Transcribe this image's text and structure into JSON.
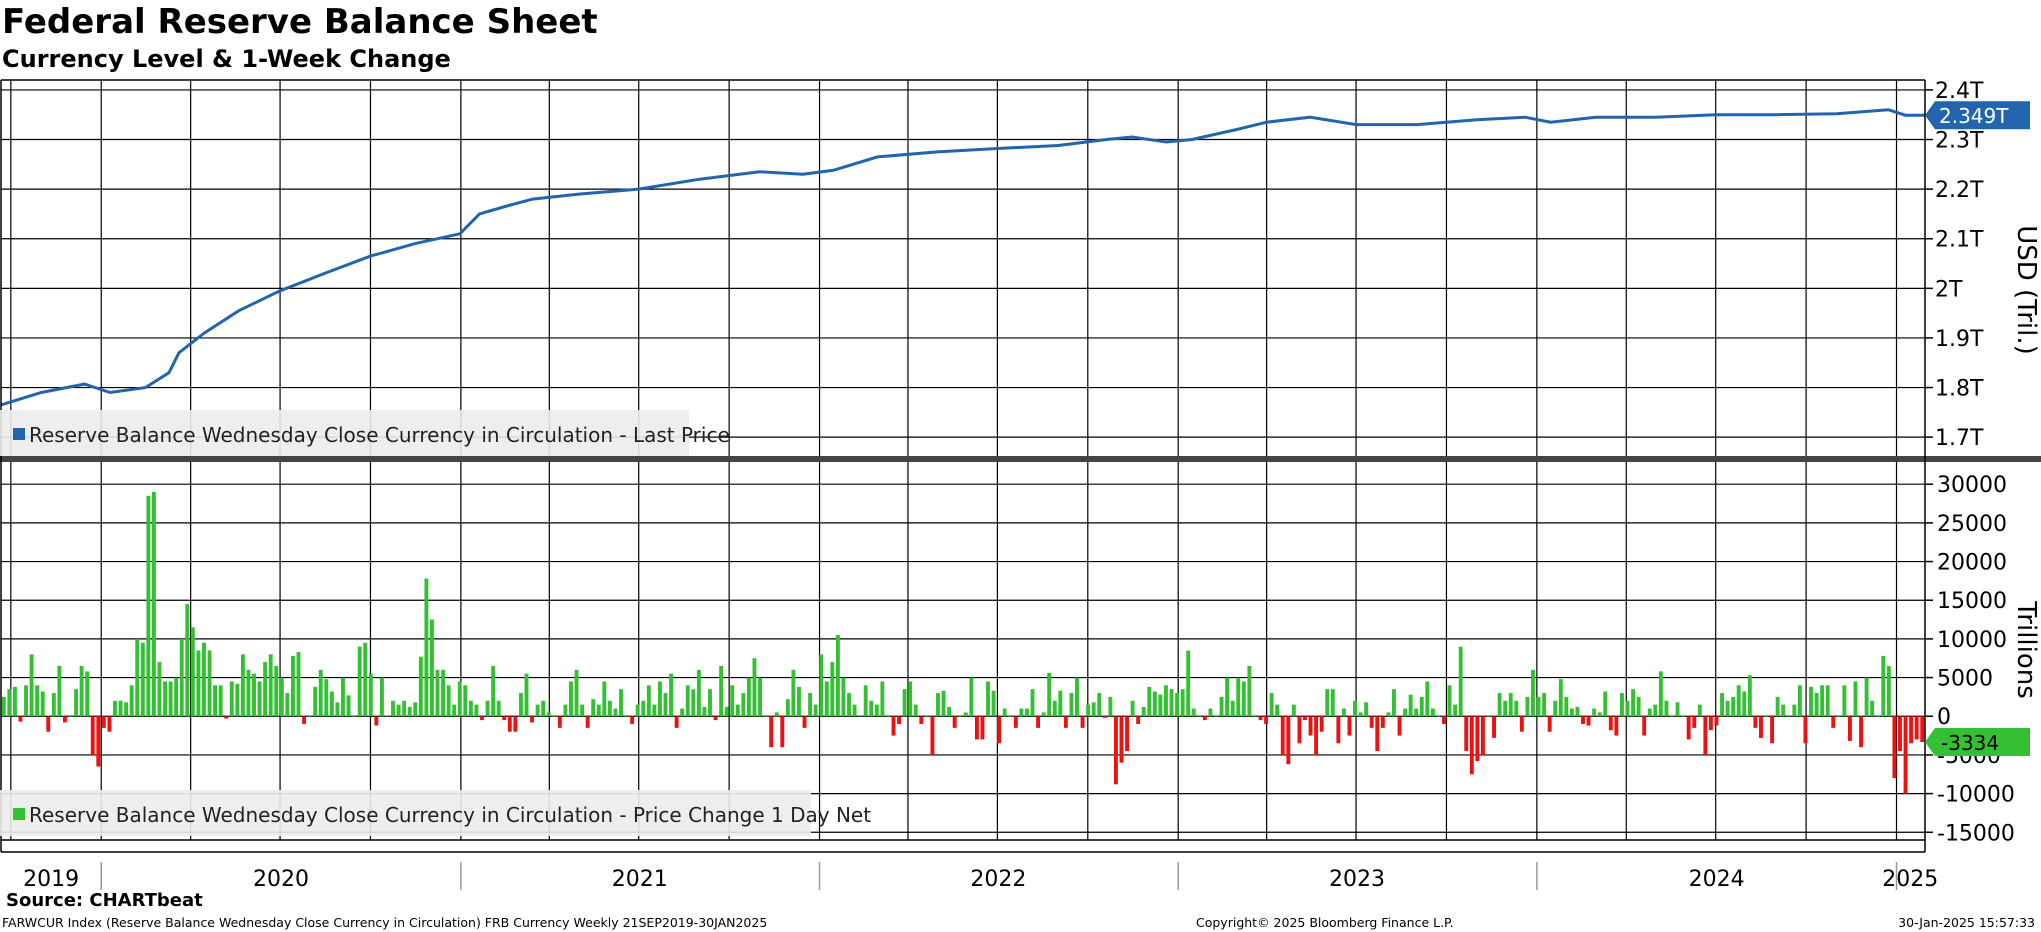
{
  "title": "Federal Reserve Balance Sheet",
  "subtitle": "Currency Level & 1-Week Change",
  "source": "Source: CHARTbeat",
  "footer": {
    "left": "FARWCUR Index (Reserve Balance Wednesday Close Currency in Circulation) FRB Currency  Weekly 21SEP2019-30JAN2025",
    "center": "Copyright© 2025 Bloomberg Finance L.P.",
    "right": "30-Jan-2025 15:57:33"
  },
  "colors": {
    "line": "#2265ad",
    "positive": "#33c033",
    "negative": "#ee1111",
    "grid": "#000000"
  },
  "chart_data": [
    {
      "type": "line",
      "ylabel": "USD (Tril.)",
      "ylim": [
        1.66,
        2.42
      ],
      "y_ticks": [
        "1.7T",
        "1.8T",
        "1.9T",
        "2T",
        "2.1T",
        "2.2T",
        "2.3T",
        "2.4T"
      ],
      "y_tick_values": [
        1.7,
        1.8,
        1.9,
        2.0,
        2.1,
        2.2,
        2.3,
        2.4
      ],
      "x_range": [
        "2019-09-21",
        "2025-01-30"
      ],
      "x_labels": [
        "2019",
        "2020",
        "2021",
        "2022",
        "2023",
        "2024",
        "2025"
      ],
      "legend": "Reserve Balance Wednesday Close Currency in Circulation - Last Price",
      "legend_placement": "bottom-left",
      "last_value_label": "2.349T",
      "series": [
        {
          "x": [
            "2019-09-21",
            "2019-11-01",
            "2019-12-15",
            "2020-01-10",
            "2020-02-15",
            "2020-03-10",
            "2020-03-20",
            "2020-04-15",
            "2020-05-20",
            "2020-07-01",
            "2020-08-15",
            "2020-10-01",
            "2020-11-15",
            "2020-12-31",
            "2021-01-20",
            "2021-02-15",
            "2021-03-15",
            "2021-05-01",
            "2021-07-01",
            "2021-09-01",
            "2021-11-01",
            "2021-12-15",
            "2022-01-15",
            "2022-03-01",
            "2022-05-01",
            "2022-07-01",
            "2022-09-01",
            "2022-10-20",
            "2022-11-15",
            "2022-12-20",
            "2023-01-15",
            "2023-03-01",
            "2023-04-01",
            "2023-05-15",
            "2023-07-01",
            "2023-09-01",
            "2023-11-01",
            "2023-12-20",
            "2024-01-15",
            "2024-03-01",
            "2024-05-01",
            "2024-07-01",
            "2024-09-01",
            "2024-11-01",
            "2024-12-24",
            "2025-01-10",
            "2025-01-30"
          ],
          "y": [
            1.765,
            1.79,
            1.807,
            1.79,
            1.8,
            1.83,
            1.87,
            1.91,
            1.955,
            1.995,
            2.03,
            2.065,
            2.09,
            2.11,
            2.15,
            2.165,
            2.18,
            2.19,
            2.2,
            2.22,
            2.235,
            2.23,
            2.238,
            2.265,
            2.275,
            2.282,
            2.288,
            2.3,
            2.305,
            2.295,
            2.3,
            2.32,
            2.335,
            2.345,
            2.33,
            2.33,
            2.34,
            2.345,
            2.335,
            2.345,
            2.345,
            2.35,
            2.35,
            2.352,
            2.36,
            2.349,
            2.349
          ]
        }
      ]
    },
    {
      "type": "bar",
      "ylabel": "Trillions",
      "ylim": [
        -16000,
        33000
      ],
      "y_ticks": [
        "-15000",
        "-10000",
        "-5000",
        "0",
        "5000",
        "10000",
        "15000",
        "20000",
        "25000",
        "30000"
      ],
      "y_tick_values": [
        -15000,
        -10000,
        -5000,
        0,
        5000,
        10000,
        15000,
        20000,
        25000,
        30000
      ],
      "x_range": [
        "2019-09-21",
        "2025-01-30"
      ],
      "legend": "Reserve Balance Wednesday Close Currency in Circulation - Price Change 1 Day Net",
      "legend_placement": "bottom-left",
      "last_value_label": "-3334",
      "values": [
        2500,
        3500,
        3800,
        -700,
        4000,
        8000,
        4000,
        3200,
        -2000,
        3000,
        6500,
        -800,
        0,
        3500,
        6500,
        5800,
        -5000,
        -6500,
        -1500,
        -2000,
        2000,
        2000,
        1800,
        4000,
        10000,
        9500,
        28500,
        29000,
        7000,
        4500,
        4500,
        5000,
        10000,
        14500,
        11500,
        8500,
        9500,
        8500,
        4000,
        4000,
        -300,
        4500,
        4200,
        8000,
        6000,
        5500,
        4500,
        7000,
        8000,
        6500,
        5000,
        3000,
        7800,
        8300,
        -1000,
        0,
        3800,
        6000,
        4800,
        3200,
        1800,
        5000,
        2700,
        0,
        9000,
        9500,
        5500,
        -1200,
        5000,
        0,
        2000,
        1500,
        2000,
        1200,
        1800,
        7700,
        17800,
        12500,
        6000,
        6000,
        4000,
        1500,
        4500,
        4000,
        2000,
        1500,
        -500,
        2000,
        6500,
        2000,
        -500,
        -2000,
        -2000,
        3000,
        5500,
        -800,
        1500,
        2000,
        500,
        0,
        -1500,
        1500,
        4500,
        6000,
        1500,
        -1500,
        2200,
        1500,
        4500,
        2000,
        1000,
        3500,
        0,
        -1000,
        1500,
        2000,
        4000,
        1500,
        4500,
        3000,
        5500,
        -1500,
        1000,
        4000,
        3500,
        6000,
        1200,
        3500,
        -500,
        6500,
        1200,
        4000,
        1500,
        3000,
        5000,
        7500,
        5000,
        0,
        -4000,
        500,
        -4000,
        2200,
        6000,
        3800,
        -1500,
        3000,
        1500,
        8000,
        4500,
        7000,
        10500,
        5000,
        3000,
        1500,
        0,
        4000,
        2000,
        1500,
        4500,
        0,
        -2500,
        -1000,
        3500,
        4500,
        1500,
        -1000,
        0,
        -5000,
        3000,
        3300,
        1200,
        -1500,
        0,
        500,
        5000,
        -3000,
        -3000,
        4500,
        3300,
        -3500,
        1000,
        0,
        -1500,
        1000,
        1000,
        3500,
        -1500,
        500,
        5600,
        2000,
        3300,
        -1500,
        3000,
        5000,
        -1500,
        1500,
        1800,
        3000,
        -200,
        2500,
        -8800,
        -6000,
        -4500,
        2000,
        -1000,
        1200,
        3800,
        3200,
        2800,
        4000,
        3500,
        3000,
        3500,
        8500,
        1000,
        0,
        -500,
        1000,
        0,
        2500,
        5000,
        2000,
        5000,
        4500,
        6500,
        0,
        -500,
        -1000,
        3000,
        1500,
        -5000,
        -6200,
        1500,
        -3500,
        -500,
        -2500,
        -5000,
        -2000,
        3500,
        3500,
        -3500,
        1000,
        -2500,
        2000,
        500,
        1800,
        -1500,
        -4500,
        -1500,
        500,
        3500,
        -2500,
        1000,
        2800,
        1000,
        2500,
        4500,
        1000,
        0,
        -1000,
        4000,
        1500,
        9000,
        -4500,
        -7500,
        -5800,
        -5000,
        0,
        -2800,
        3000,
        2000,
        3000,
        2000,
        -2000,
        2500,
        6000,
        2500,
        3000,
        -2000,
        2000,
        4800,
        2500,
        1000,
        1200,
        -1000,
        -1200,
        1000,
        500,
        3200,
        -1800,
        -2500,
        3000,
        2000,
        3500,
        2500,
        -2500,
        1000,
        1500,
        5800,
        2000,
        0,
        1800,
        0,
        -3000,
        -1500,
        1500,
        -5000,
        -1800,
        -1200,
        3000,
        2000,
        2500,
        4000,
        3200,
        5300,
        -1500,
        -2800,
        0,
        -3500,
        2500,
        1500,
        0,
        1500,
        4000,
        -3500,
        3800,
        3000,
        4000,
        4000,
        -1500,
        0,
        4000,
        -3200,
        4500,
        -4000,
        5000,
        2000,
        0,
        7800,
        6500,
        -8000,
        -4500,
        -10000,
        -3500,
        -3000,
        -3334
      ],
      "x_labels": [
        "2019",
        "2020",
        "2021",
        "2022",
        "2023",
        "2024",
        "2025"
      ]
    }
  ]
}
